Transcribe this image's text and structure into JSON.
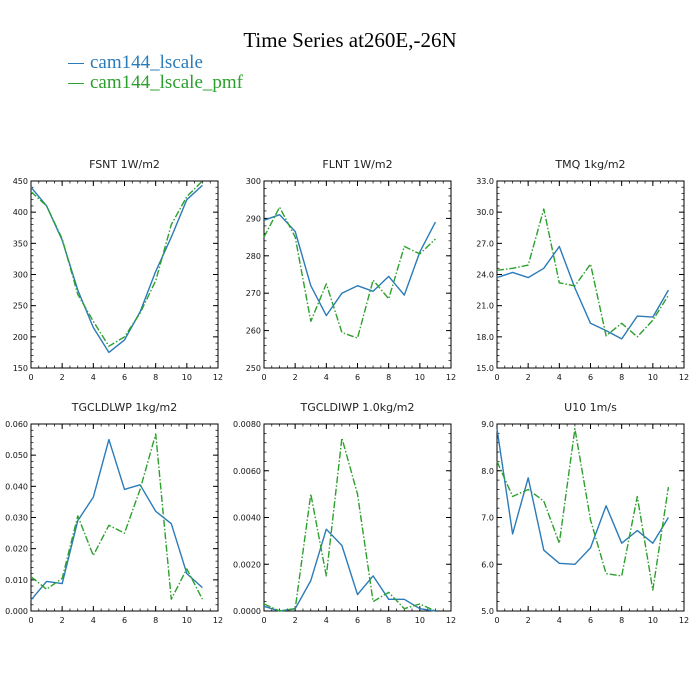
{
  "title": "Time Series at260E,-26N",
  "colors": {
    "blue": "#2b7bb9",
    "green": "#2ca02c",
    "frame": "#000000"
  },
  "legend": [
    {
      "label": "cam144_lscale",
      "color": "#2b7bb9",
      "dash": "solid"
    },
    {
      "label": "cam144_lscale_pmf",
      "color": "#2ca02c",
      "dash": "dashdot"
    }
  ],
  "chart_data": [
    {
      "type": "line",
      "title": "FSNT 1W/m2",
      "xlim": [
        0,
        12
      ],
      "ylim": [
        150,
        450
      ],
      "xticks": [
        "0",
        "2",
        "4",
        "6",
        "8",
        "10",
        "12"
      ],
      "yticks": [
        "150",
        "200",
        "250",
        "300",
        "350",
        "400",
        "450"
      ],
      "x": [
        0,
        1,
        2,
        3,
        4,
        5,
        6,
        7,
        8,
        9,
        10,
        11
      ],
      "series": [
        {
          "name": "cam144_lscale",
          "values": [
            440,
            410,
            355,
            275,
            215,
            175,
            195,
            240,
            305,
            360,
            420,
            443
          ]
        },
        {
          "name": "cam144_lscale_pmf",
          "values": [
            433,
            410,
            357,
            268,
            225,
            185,
            200,
            238,
            290,
            380,
            425,
            450
          ]
        }
      ]
    },
    {
      "type": "line",
      "title": "FLNT 1W/m2",
      "xlim": [
        0,
        12
      ],
      "ylim": [
        250,
        300
      ],
      "xticks": [
        "0",
        "2",
        "4",
        "6",
        "8",
        "10",
        "12"
      ],
      "yticks": [
        "250",
        "260",
        "270",
        "280",
        "290",
        "300"
      ],
      "x": [
        0,
        1,
        2,
        3,
        4,
        5,
        6,
        7,
        8,
        9,
        10,
        11
      ],
      "series": [
        {
          "name": "cam144_lscale",
          "values": [
            289.5,
            291,
            286.5,
            272,
            264,
            270,
            272,
            270.5,
            274.5,
            269.5,
            281,
            289
          ]
        },
        {
          "name": "cam144_lscale_pmf",
          "values": [
            285,
            293,
            285,
            262.5,
            272.5,
            259.5,
            258,
            273.5,
            268.5,
            282.5,
            280.5,
            284.5
          ]
        }
      ]
    },
    {
      "type": "line",
      "title": "TMQ 1kg/m2",
      "xlim": [
        0,
        12
      ],
      "ylim": [
        15,
        33
      ],
      "xticks": [
        "0",
        "2",
        "4",
        "6",
        "8",
        "10",
        "12"
      ],
      "yticks": [
        "15.0",
        "18.0",
        "21.0",
        "24.0",
        "27.0",
        "30.0",
        "33.0"
      ],
      "x": [
        0,
        1,
        2,
        3,
        4,
        5,
        6,
        7,
        8,
        9,
        10,
        11
      ],
      "series": [
        {
          "name": "cam144_lscale",
          "values": [
            23.7,
            24.2,
            23.7,
            24.6,
            26.7,
            22.7,
            19.3,
            18.6,
            17.8,
            20.0,
            19.9,
            22.5
          ]
        },
        {
          "name": "cam144_lscale_pmf",
          "values": [
            24.4,
            24.6,
            24.9,
            30.3,
            23.2,
            22.9,
            25.0,
            18.1,
            19.3,
            18.0,
            19.6,
            22.0
          ]
        }
      ]
    },
    {
      "type": "line",
      "title": "TGCLDLWP 1kg/m2",
      "xlim": [
        0,
        12
      ],
      "ylim": [
        0.0,
        0.06
      ],
      "xticks": [
        "0",
        "2",
        "4",
        "6",
        "8",
        "10",
        "12"
      ],
      "yticks": [
        "0.000",
        "0.010",
        "0.020",
        "0.030",
        "0.040",
        "0.050",
        "0.060"
      ],
      "x": [
        0,
        1,
        2,
        3,
        4,
        5,
        6,
        7,
        8,
        9,
        10,
        11
      ],
      "series": [
        {
          "name": "cam144_lscale",
          "values": [
            0.0035,
            0.0095,
            0.0088,
            0.029,
            0.0365,
            0.055,
            0.039,
            0.0405,
            0.032,
            0.028,
            0.012,
            0.0075
          ]
        },
        {
          "name": "cam144_lscale_pmf",
          "values": [
            0.011,
            0.007,
            0.0105,
            0.0305,
            0.0178,
            0.0275,
            0.025,
            0.039,
            0.0568,
            0.0038,
            0.0135,
            0.0038
          ]
        }
      ]
    },
    {
      "type": "line",
      "title": "TGCLDIWP 1.0kg/m2",
      "xlim": [
        0,
        12
      ],
      "ylim": [
        0.0,
        0.008
      ],
      "xticks": [
        "0",
        "2",
        "4",
        "6",
        "8",
        "10",
        "12"
      ],
      "yticks": [
        "0.0000",
        "0.0020",
        "0.0040",
        "0.0060",
        "0.0080"
      ],
      "x": [
        0,
        1,
        2,
        3,
        4,
        5,
        6,
        7,
        8,
        9,
        10,
        11
      ],
      "series": [
        {
          "name": "cam144_lscale",
          "values": [
            0.0002,
            0.0,
            0.0001,
            0.0013,
            0.0035,
            0.0028,
            0.0007,
            0.0015,
            0.0005,
            0.0005,
            0.0001,
            0.0
          ]
        },
        {
          "name": "cam144_lscale_pmf",
          "values": [
            0.0003,
            0.0,
            0.0001,
            0.005,
            0.0015,
            0.0074,
            0.005,
            0.0004,
            0.0008,
            0.0001,
            0.0003,
            0.0
          ]
        }
      ]
    },
    {
      "type": "line",
      "title": "U10 1m/s",
      "xlim": [
        0,
        12
      ],
      "ylim": [
        5.0,
        9.0
      ],
      "xticks": [
        "0",
        "2",
        "4",
        "6",
        "8",
        "10",
        "12"
      ],
      "yticks": [
        "5.0",
        "6.0",
        "7.0",
        "8.0",
        "9.0"
      ],
      "x": [
        0,
        1,
        2,
        3,
        4,
        5,
        6,
        7,
        8,
        9,
        10,
        11
      ],
      "series": [
        {
          "name": "cam144_lscale",
          "values": [
            8.9,
            6.65,
            7.85,
            6.3,
            6.02,
            6.0,
            6.35,
            7.25,
            6.45,
            6.72,
            6.45,
            7.0
          ]
        },
        {
          "name": "cam144_lscale_pmf",
          "values": [
            8.2,
            7.45,
            7.6,
            7.35,
            6.45,
            8.9,
            6.95,
            5.8,
            5.75,
            7.45,
            5.45,
            7.65
          ]
        }
      ]
    }
  ]
}
